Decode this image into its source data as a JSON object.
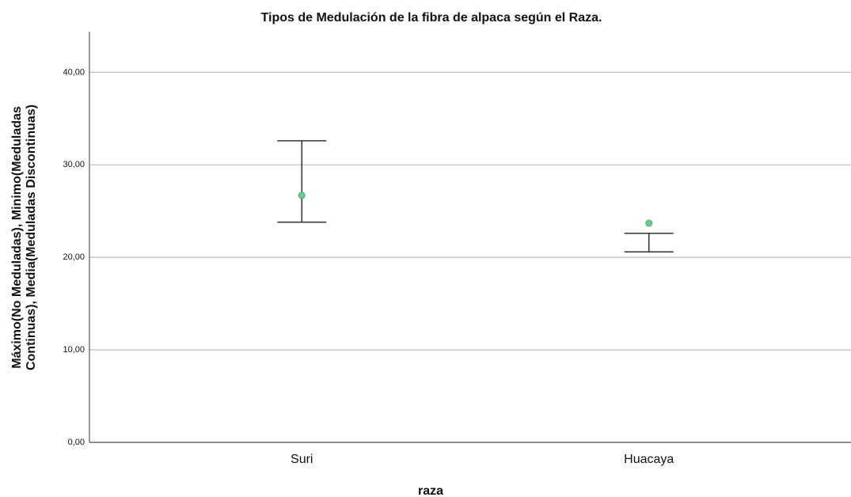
{
  "chart_data": {
    "type": "highlow",
    "title": "Tipos de Medulación de la fibra de alpaca según el Raza.",
    "x_label": "raza",
    "y_label": [
      "Máximo(No Meduladas), Minimo(Meduladas",
      "Continuas), Media(Meduladas Discontinuas)"
    ],
    "categories": [
      "Suri",
      "Huacaya"
    ],
    "high": [
      32.6,
      22.6
    ],
    "low": [
      23.8,
      20.6
    ],
    "mean": [
      26.7,
      23.7
    ],
    "mean_color": "#5fd38b",
    "line_color": "#333333",
    "ylim": [
      0,
      44.4
    ],
    "yticks": [
      {
        "value": 0,
        "label": "0,00"
      },
      {
        "value": 10,
        "label": "10,00"
      },
      {
        "value": 20,
        "label": "20,00"
      },
      {
        "value": 30,
        "label": "30,00"
      },
      {
        "value": 40,
        "label": "40,00"
      }
    ],
    "grid": true
  }
}
